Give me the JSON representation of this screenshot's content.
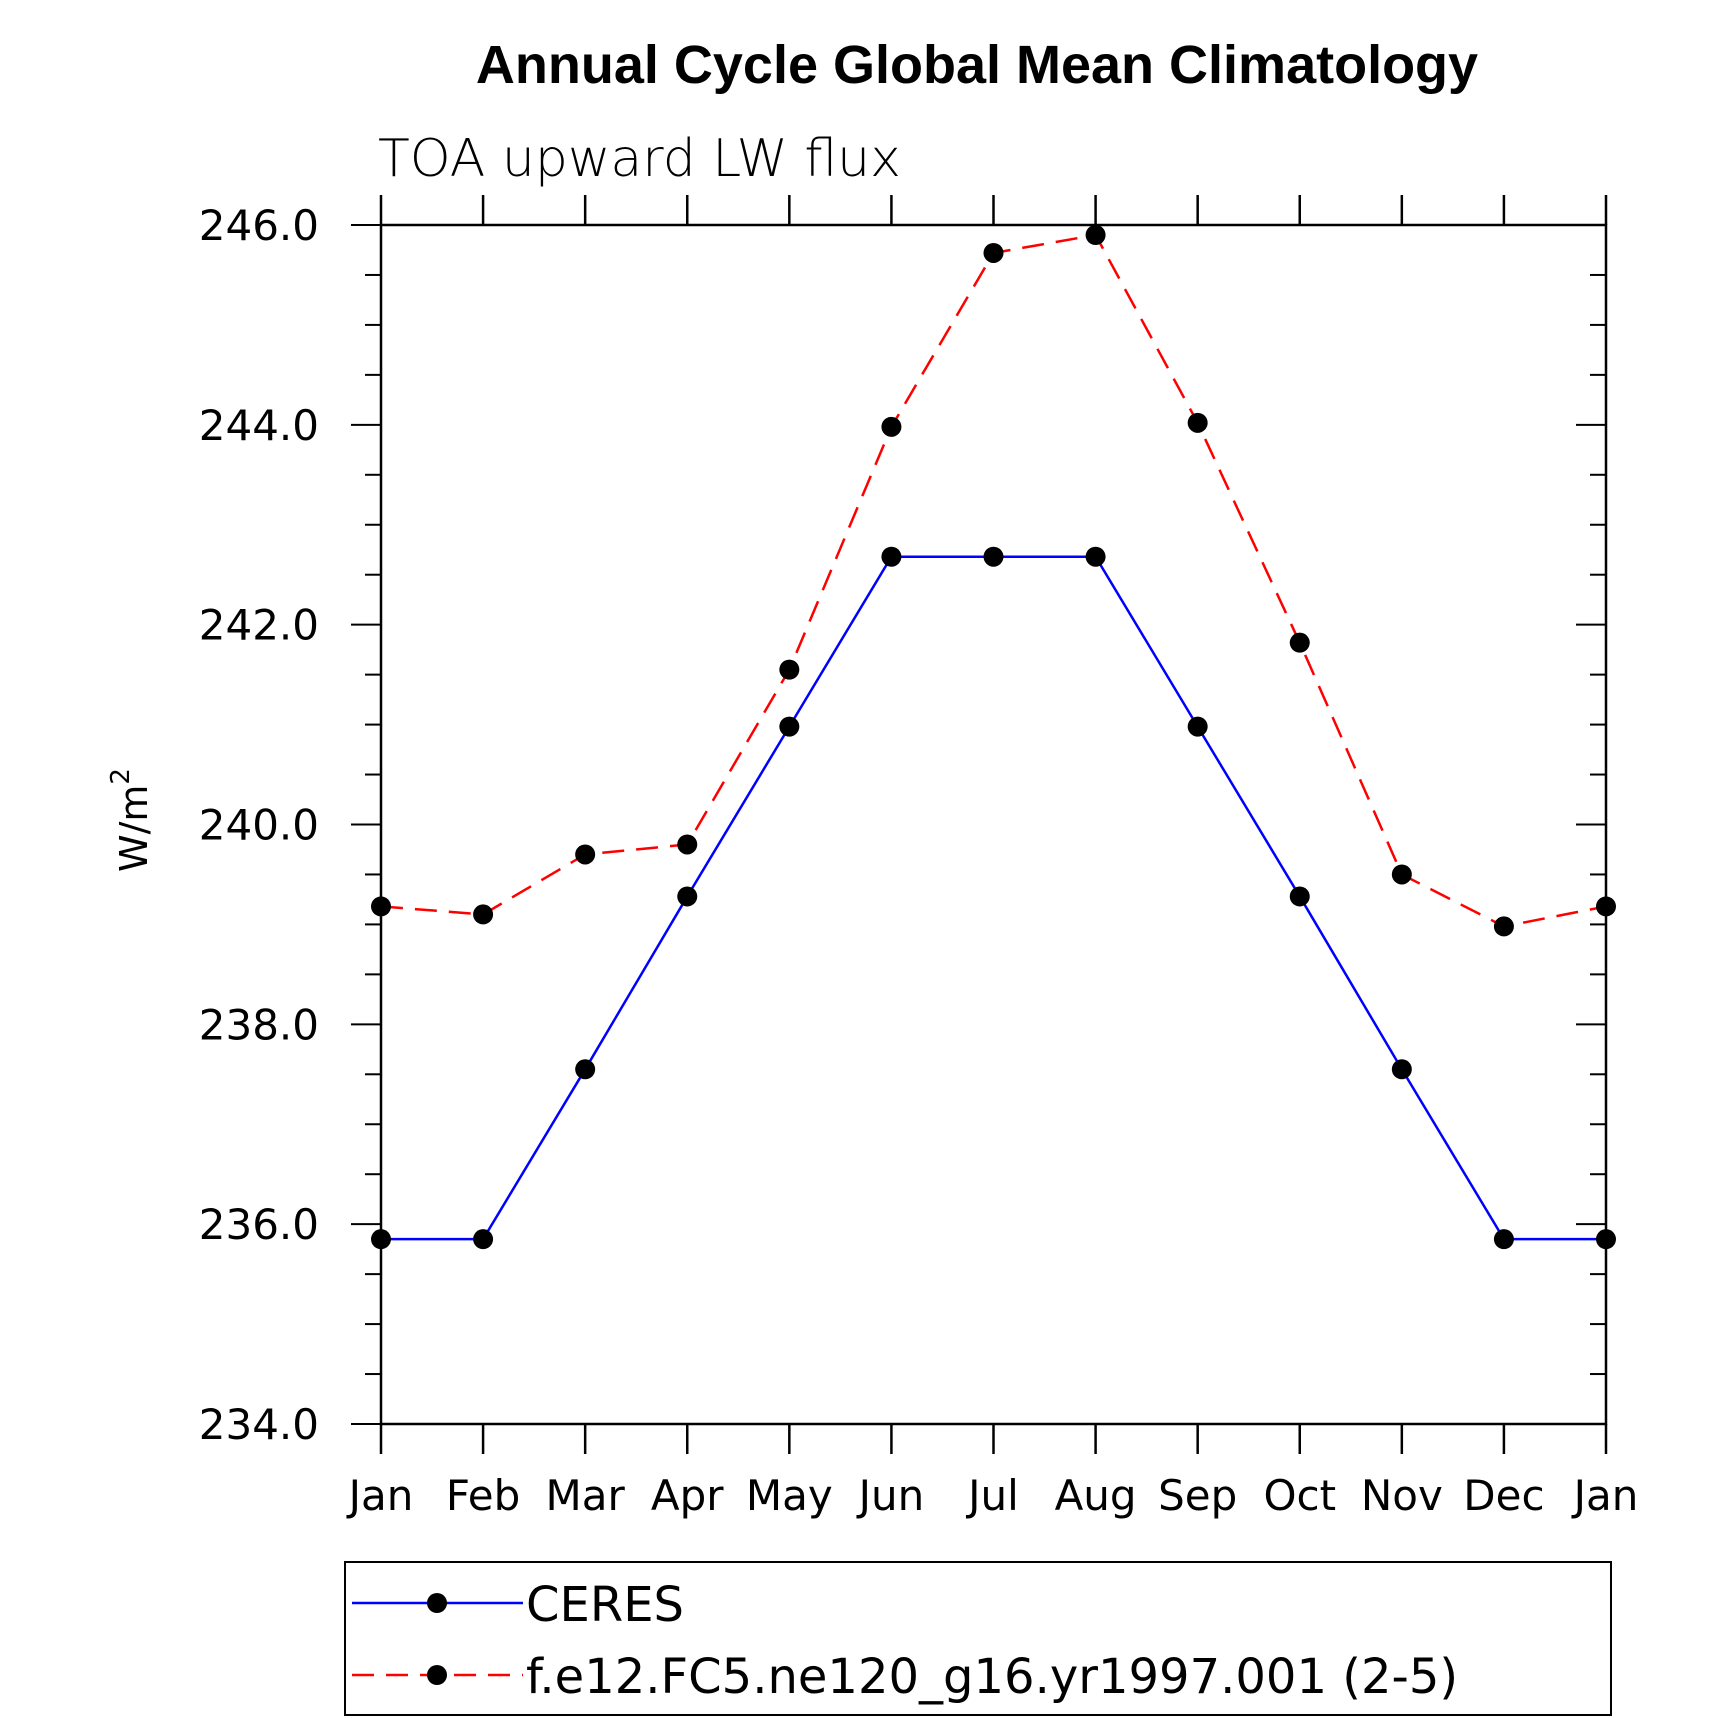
{
  "chart_data": {
    "type": "line",
    "title": "Annual Cycle Global Mean Climatology",
    "subtitle": "TOA upward LW flux",
    "xlabel": "",
    "ylabel": "W/m",
    "ylabel_superscript": "2",
    "ylim": [
      234.0,
      246.0
    ],
    "yticks": [
      "234.0",
      "236.0",
      "238.0",
      "240.0",
      "242.0",
      "244.0",
      "246.0"
    ],
    "categories": [
      "Jan",
      "Feb",
      "Mar",
      "Apr",
      "May",
      "Jun",
      "Jul",
      "Aug",
      "Sep",
      "Oct",
      "Nov",
      "Dec",
      "Jan"
    ],
    "legend_position": "bottom",
    "series": [
      {
        "name": "CERES",
        "color": "#0000ff",
        "dash": "solid",
        "values": [
          235.85,
          235.85,
          237.55,
          239.28,
          240.98,
          242.68,
          242.68,
          242.68,
          240.98,
          239.28,
          237.55,
          235.85,
          235.85
        ]
      },
      {
        "name": "f.e12.FC5.ne120_g16.yr1997.001 (2-5)",
        "color": "#ff0000",
        "dash": "dashed",
        "values": [
          239.18,
          239.1,
          239.7,
          239.8,
          241.55,
          243.98,
          245.72,
          245.9,
          244.02,
          241.82,
          239.5,
          238.98,
          239.18
        ]
      }
    ]
  }
}
